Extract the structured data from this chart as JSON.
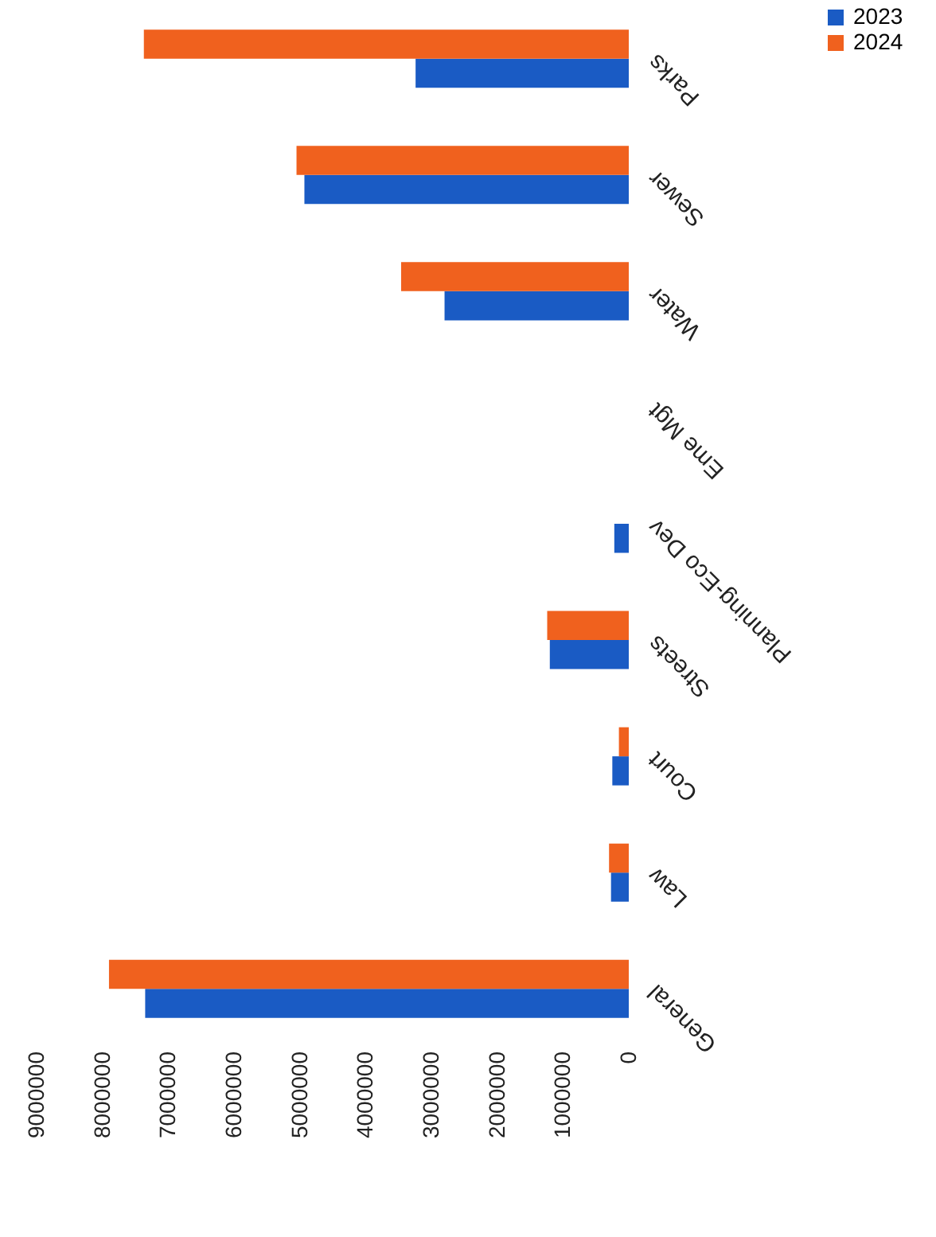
{
  "chart_data": {
    "type": "bar",
    "orientation": "horizontal",
    "categories": [
      "Parks",
      "Sewer",
      "Water",
      "Eme Mgt",
      "Planning-Eco Dev",
      "Streets",
      "Court",
      "Law",
      "General"
    ],
    "series": [
      {
        "name": "2023",
        "color": "#1a5bc4",
        "values": [
          3240000,
          4930000,
          2800000,
          null,
          220000,
          1200000,
          250000,
          270000,
          7350000
        ]
      },
      {
        "name": "2024",
        "color": "#f0611e",
        "values": [
          7370000,
          5050000,
          3460000,
          null,
          null,
          1240000,
          150000,
          300000,
          7900000
        ]
      }
    ],
    "xlim": [
      9000000,
      0
    ],
    "xticks": [
      9000000,
      8000000,
      7000000,
      6000000,
      5000000,
      4000000,
      3000000,
      2000000,
      1000000,
      0
    ],
    "grid": false,
    "legend": "right"
  }
}
